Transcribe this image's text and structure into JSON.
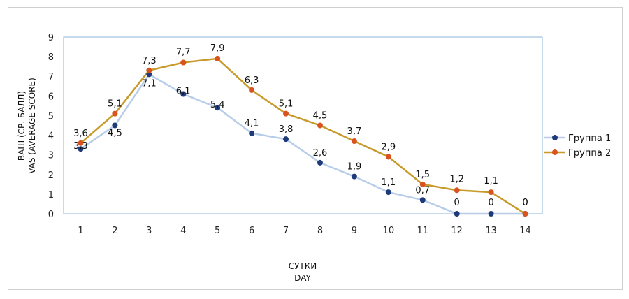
{
  "chart_data": {
    "type": "line",
    "x": [
      1,
      2,
      3,
      4,
      5,
      6,
      7,
      8,
      9,
      10,
      11,
      12,
      13,
      14
    ],
    "x_labels": [
      "1",
      "2",
      "3",
      "4",
      "5",
      "6",
      "7",
      "8",
      "9",
      "10",
      "11",
      "12",
      "13",
      "14"
    ],
    "series": [
      {
        "name": "Группа 1",
        "values": [
          3.3,
          4.5,
          7.1,
          6.1,
          5.4,
          4.1,
          3.8,
          2.6,
          1.9,
          1.1,
          0.7,
          0,
          0,
          0
        ],
        "labels": [
          "3,3",
          "4,5",
          "7,1",
          "6,1",
          "5,4",
          "4,1",
          "3,8",
          "2,6",
          "1,9",
          "1,1",
          "0,7",
          "0",
          "0",
          "0"
        ],
        "line_color": "#b8cde8",
        "marker_color": "#1f3a7a"
      },
      {
        "name": "Группа 2",
        "values": [
          3.6,
          5.1,
          7.3,
          7.7,
          7.9,
          6.3,
          5.1,
          4.5,
          3.7,
          2.9,
          1.5,
          1.2,
          1.1,
          0
        ],
        "labels": [
          "3,6",
          "5,1",
          "7,3",
          "7,7",
          "7,9",
          "6,3",
          "5,1",
          "4,5",
          "3,7",
          "2,9",
          "1,5",
          "1,2",
          "1,1",
          "0"
        ],
        "line_color": "#c89a2a",
        "marker_color": "#d9531e"
      }
    ],
    "ylim": [
      0,
      9
    ],
    "yticks": [
      "0",
      "1",
      "2",
      "3",
      "4",
      "5",
      "6",
      "7",
      "8",
      "9"
    ],
    "ylabel_line1": "ВАШ (СР. БАЛЛ)",
    "ylabel_line2": "VAS (AVERAGE SCORE)",
    "xlabel_line1": "СУТКИ",
    "xlabel_line2": "DAY",
    "grid": false,
    "legend_position": "right"
  }
}
